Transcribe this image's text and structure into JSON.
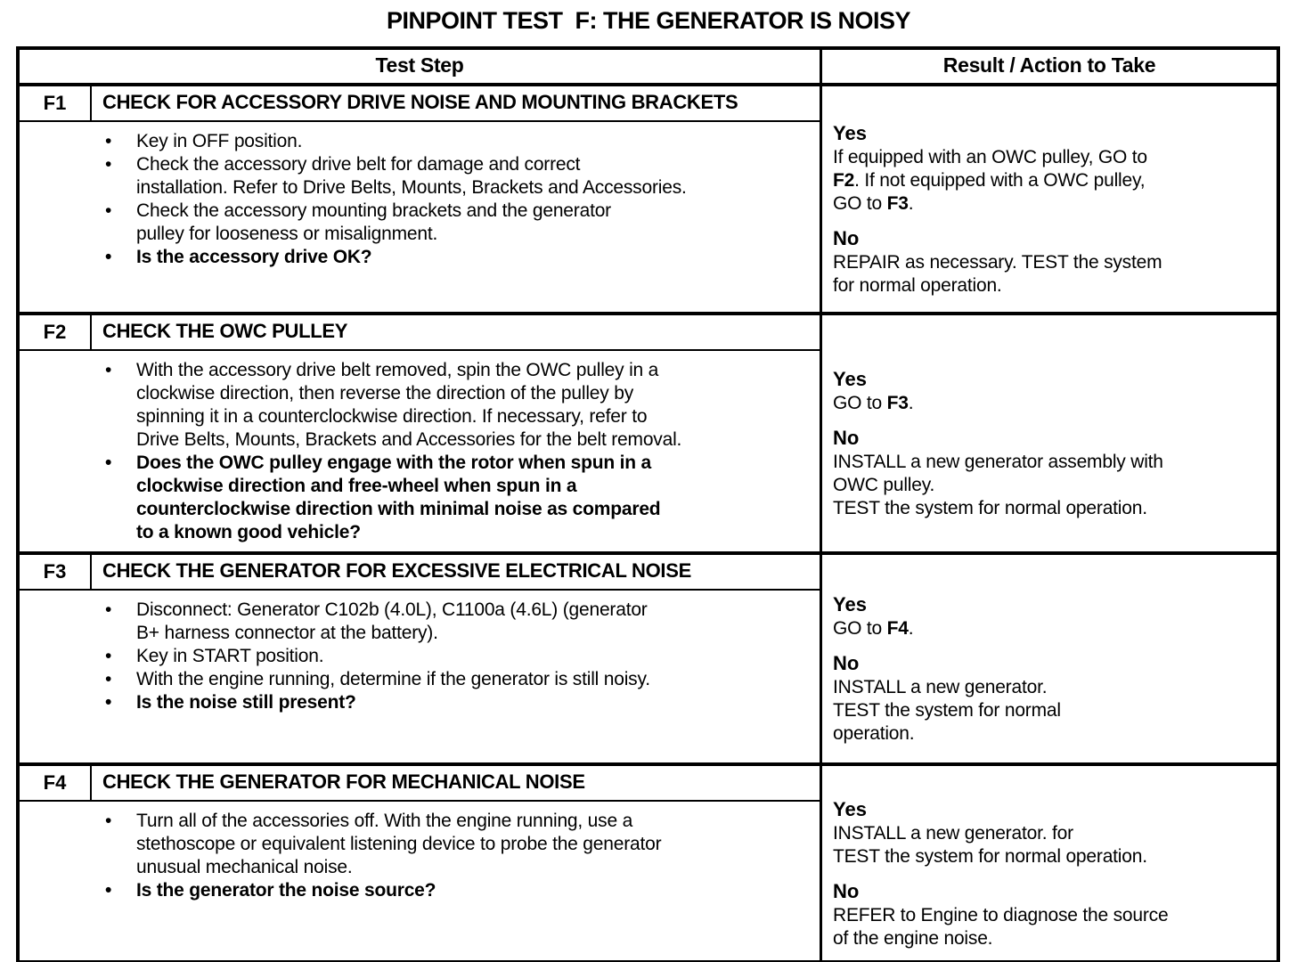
{
  "title": "PINPOINT TEST  F: THE GENERATOR IS NOISY",
  "colors": {
    "text": "#000000",
    "border": "#000000",
    "background": "#ffffff"
  },
  "table": {
    "headers": {
      "test_step": "Test Step",
      "result": "Result / Action to Take"
    },
    "rows": [
      {
        "id": "F1",
        "heading": "CHECK FOR ACCESSORY DRIVE NOISE AND MOUNTING BRACKETS",
        "steps": [
          {
            "text": "Key in OFF position.",
            "bold": false
          },
          {
            "text": "Check the accessory drive belt for damage and correct\ninstallation. Refer to Drive Belts, Mounts, Brackets and Accessories.",
            "bold": false
          },
          {
            "text": "Check the accessory mounting brackets and the generator\npulley for looseness or misalignment.",
            "bold": false
          },
          {
            "text": "Is the accessory drive OK?",
            "bold": true
          }
        ],
        "result": [
          {
            "label": "Yes",
            "runs": [
              {
                "t": "If equipped with an OWC pulley, GO to\n"
              },
              {
                "t": "F2",
                "b": true
              },
              {
                "t": ". If not equipped with a OWC pulley,\nGO to "
              },
              {
                "t": "F3",
                "b": true
              },
              {
                "t": "."
              }
            ]
          },
          {
            "label": "No",
            "runs": [
              {
                "t": "REPAIR as necessary. TEST the system\nfor normal operation."
              }
            ]
          }
        ]
      },
      {
        "id": "F2",
        "heading": "CHECK THE OWC PULLEY",
        "steps": [
          {
            "text": "With the accessory drive belt removed, spin the OWC pulley in a\nclockwise direction, then reverse the direction of the pulley by\nspinning it in a counterclockwise direction. If necessary, refer to\nDrive Belts, Mounts, Brackets and Accessories for the belt removal.",
            "bold": false
          },
          {
            "text": "Does the OWC pulley engage with the rotor when spun in a\nclockwise direction and free-wheel when spun in a\ncounterclockwise direction with minimal noise as compared\nto a known good vehicle?",
            "bold": true
          }
        ],
        "result": [
          {
            "label": "Yes",
            "runs": [
              {
                "t": "GO to "
              },
              {
                "t": "F3",
                "b": true
              },
              {
                "t": "."
              }
            ]
          },
          {
            "label": "No",
            "runs": [
              {
                "t": "INSTALL a new generator assembly with\nOWC pulley.\nTEST the system for normal operation."
              }
            ]
          }
        ]
      },
      {
        "id": "F3",
        "heading": "CHECK THE GENERATOR FOR EXCESSIVE ELECTRICAL NOISE",
        "steps": [
          {
            "text": "Disconnect: Generator C102b (4.0L), C1100a (4.6L) (generator\nB+ harness connector at the battery).",
            "bold": false
          },
          {
            "text": "Key in START position.",
            "bold": false
          },
          {
            "text": "With the engine running, determine if the generator is still noisy.",
            "bold": false
          },
          {
            "text": "Is the noise still present?",
            "bold": true
          }
        ],
        "result": [
          {
            "label": "Yes",
            "runs": [
              {
                "t": "GO to "
              },
              {
                "t": "F4",
                "b": true
              },
              {
                "t": "."
              }
            ]
          },
          {
            "label": "No",
            "runs": [
              {
                "t": "INSTALL a new generator.\nTEST the system for normal\noperation."
              }
            ]
          }
        ]
      },
      {
        "id": "F4",
        "heading": "CHECK THE GENERATOR FOR MECHANICAL NOISE",
        "steps": [
          {
            "text": "Turn all of the accessories off. With the engine running, use a\nstethoscope or equivalent listening device to probe the generator\nunusual mechanical noise.",
            "bold": false
          },
          {
            "text": "Is the generator the noise source?",
            "bold": true
          }
        ],
        "result": [
          {
            "label": "Yes",
            "runs": [
              {
                "t": "INSTALL a new generator.  for\nTEST the system for normal operation."
              }
            ]
          },
          {
            "label": "No",
            "runs": [
              {
                "t": "REFER to Engine to diagnose the source\nof the engine noise."
              }
            ]
          }
        ]
      }
    ]
  }
}
